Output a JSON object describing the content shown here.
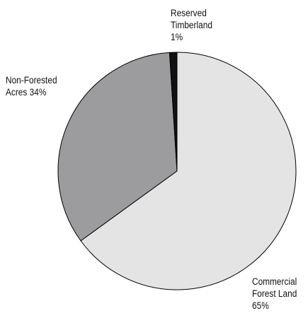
{
  "chart_data": {
    "type": "pie",
    "title": "",
    "start_angle_deg": 0,
    "direction": "clockwise",
    "slices": [
      {
        "name": "Commercial Forest Land",
        "value": 65,
        "label_lines": [
          "Commercial",
          "Forest Land",
          "65%"
        ],
        "color": "#e4e4e4"
      },
      {
        "name": "Non-Forested Acres",
        "value": 34,
        "label_lines": [
          "Non-Forested",
          "Acres 34%"
        ],
        "color": "#9c9c9e"
      },
      {
        "name": "Reserved Timberland",
        "value": 1,
        "label_lines": [
          "Reserved",
          "Timberland",
          "1%"
        ],
        "color": "#111111"
      }
    ]
  }
}
